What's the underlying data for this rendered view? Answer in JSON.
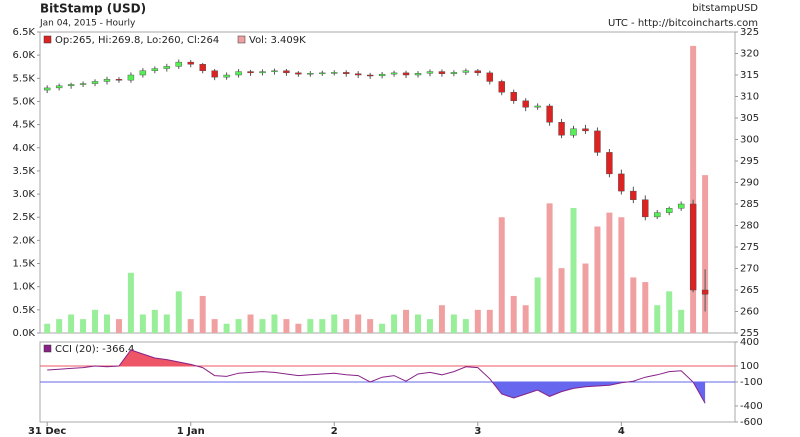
{
  "chart_data": [
    {
      "type": "candlestick",
      "title": "BitStamp (USD)",
      "subtitle": "Jan 04, 2015 - Hourly",
      "symbol": "bitstampUSD",
      "source": "UTC - http://bitcoincharts.com",
      "legend": "Op:265, Hi:269.8, Lo:260, Cl:264",
      "up_color": "#55ee55",
      "down_color": "#dd2222",
      "x": [
        0,
        2,
        4,
        6,
        8,
        10,
        12,
        14,
        16,
        18,
        20,
        22,
        24,
        26,
        28,
        30,
        32,
        34,
        36,
        38,
        40,
        42,
        44,
        46,
        48,
        50,
        52,
        54,
        56,
        58,
        60,
        62,
        64,
        66,
        68,
        70,
        72,
        74,
        76,
        78,
        80,
        82,
        84,
        86,
        88,
        90,
        92,
        94,
        96,
        98,
        100,
        102,
        104,
        106,
        108,
        110
      ],
      "open": [
        311.5,
        312,
        312.5,
        312.8,
        313,
        313.5,
        314,
        313.8,
        315,
        316,
        316.5,
        317,
        318,
        317.5,
        316,
        314.5,
        315,
        315.8,
        315.5,
        315.8,
        316,
        315.5,
        315.2,
        315.4,
        315.5,
        315.6,
        315.3,
        315,
        314.8,
        315.2,
        315.5,
        315,
        315.4,
        315.8,
        315.3,
        315.6,
        316,
        315.5,
        313.5,
        311,
        309,
        307.5,
        307.8,
        304,
        301,
        302.5,
        302,
        297,
        292,
        288,
        286,
        282,
        283,
        284,
        285,
        265
      ],
      "high": [
        312.6,
        313,
        313.2,
        313.5,
        314,
        314.6,
        314.5,
        315.6,
        316.6,
        317,
        317.6,
        318.6,
        318.5,
        317.8,
        316.4,
        315.6,
        316.4,
        316.2,
        316.3,
        316.5,
        316.4,
        315.9,
        315.9,
        316,
        316.1,
        316.1,
        315.9,
        315.5,
        315.7,
        316,
        316,
        315.9,
        316.3,
        316.3,
        316.1,
        316.5,
        316.4,
        316,
        313.9,
        311.6,
        309.6,
        308.4,
        308.3,
        304.8,
        303.2,
        303.4,
        302.8,
        297.8,
        293,
        289,
        287,
        283.6,
        284.4,
        285.6,
        286,
        269.8
      ],
      "low": [
        310.8,
        311.4,
        311.8,
        312.2,
        312.4,
        312.8,
        313.2,
        313.2,
        314.4,
        315.4,
        315.8,
        316.4,
        316.8,
        315.4,
        313.8,
        313.9,
        314.4,
        314.8,
        314.9,
        315.1,
        314.8,
        314.6,
        314.6,
        314.8,
        314.9,
        314.6,
        314.3,
        314.1,
        314.2,
        314.6,
        314.3,
        314.4,
        314.7,
        314.6,
        314.7,
        315,
        314.8,
        312.8,
        310.3,
        308.3,
        306.6,
        306.9,
        303.2,
        300.3,
        300.4,
        301.3,
        296.2,
        291.2,
        287.2,
        285.2,
        281.2,
        281.5,
        282.4,
        283.4,
        264.5,
        260
      ],
      "close": [
        312,
        312.5,
        312.8,
        313,
        313.5,
        314,
        313.8,
        315,
        316,
        316.5,
        317,
        318,
        317.5,
        316,
        314.5,
        315,
        315.8,
        315.5,
        315.8,
        316,
        315.5,
        315.2,
        315.4,
        315.5,
        315.6,
        315.3,
        315,
        314.8,
        315.2,
        315.5,
        315,
        315.4,
        315.8,
        315.3,
        315.6,
        316,
        315.5,
        313.5,
        311,
        309,
        307.5,
        307.8,
        304,
        301,
        302.5,
        302,
        297,
        292,
        288,
        286,
        282,
        283,
        284,
        285,
        265,
        264
      ],
      "volume": {
        "name": "Vol: 3.409K",
        "up_color": "#99ee99",
        "down_color": "#f0a0a0",
        "values": [
          0.2,
          0.3,
          0.4,
          0.3,
          0.5,
          0.4,
          0.3,
          1.3,
          0.4,
          0.5,
          0.4,
          0.9,
          0.3,
          0.8,
          0.3,
          0.2,
          0.3,
          0.4,
          0.3,
          0.4,
          0.3,
          0.2,
          0.3,
          0.3,
          0.4,
          0.3,
          0.4,
          0.3,
          0.2,
          0.4,
          0.5,
          0.4,
          0.3,
          0.6,
          0.4,
          0.3,
          0.5,
          0.5,
          2.5,
          0.8,
          0.6,
          1.2,
          2.8,
          1.4,
          2.7,
          1.5,
          2.3,
          2.6,
          2.5,
          1.2,
          1.1,
          0.6,
          0.9,
          0.5,
          6.2,
          3.409
        ]
      },
      "xlim": [
        -1.2,
        115
      ],
      "ylim": [
        0,
        6.5
      ],
      "yticks": [
        {
          "value": 0,
          "label": "0.0K"
        },
        {
          "value": 0.5,
          "label": "0.5K"
        },
        {
          "value": 1,
          "label": "1.0K"
        },
        {
          "value": 1.5,
          "label": "1.5K"
        },
        {
          "value": 2,
          "label": "2.0K"
        },
        {
          "value": 2.5,
          "label": "2.5K"
        },
        {
          "value": 3,
          "label": "3.0K"
        },
        {
          "value": 3.5,
          "label": "3.5K"
        },
        {
          "value": 4,
          "label": "4.0K"
        },
        {
          "value": 4.5,
          "label": "4.5K"
        },
        {
          "value": 5,
          "label": "5.0K"
        },
        {
          "value": 5.5,
          "label": "5.5K"
        },
        {
          "value": 6,
          "label": "6.0K"
        },
        {
          "value": 6.5,
          "label": "6.5K"
        }
      ],
      "y2lim": [
        255,
        325
      ],
      "y2ticks": [
        255,
        260,
        265,
        270,
        275,
        280,
        285,
        290,
        295,
        300,
        305,
        310,
        315,
        320,
        325
      ]
    },
    {
      "type": "cci",
      "name": "CCI (20): -366.4",
      "color": "#882288",
      "high_fill": "#ee5566",
      "low_fill": "#6666ee",
      "overbought": 100,
      "oversold": -100,
      "x": [
        0,
        2,
        4,
        6,
        8,
        10,
        12,
        14,
        16,
        18,
        20,
        22,
        24,
        26,
        28,
        30,
        32,
        34,
        36,
        38,
        40,
        42,
        44,
        46,
        48,
        50,
        52,
        54,
        56,
        58,
        60,
        62,
        64,
        66,
        68,
        70,
        72,
        74,
        76,
        78,
        80,
        82,
        84,
        86,
        88,
        90,
        92,
        94,
        96,
        98,
        100,
        102,
        104,
        106,
        108,
        110
      ],
      "values": [
        50,
        60,
        70,
        80,
        100,
        90,
        100,
        300,
        250,
        200,
        180,
        150,
        120,
        80,
        -20,
        -30,
        10,
        20,
        30,
        20,
        0,
        -20,
        -10,
        0,
        10,
        -10,
        -20,
        -100,
        -40,
        -20,
        -90,
        0,
        20,
        -10,
        30,
        90,
        80,
        -60,
        -250,
        -300,
        -250,
        -200,
        -280,
        -220,
        -180,
        -160,
        -150,
        -140,
        -110,
        -90,
        -40,
        -10,
        30,
        40,
        -100,
        -366.4
      ],
      "xlim": [
        -1.2,
        115
      ],
      "xticks": [
        {
          "value": 0,
          "label": "31 Dec"
        },
        {
          "value": 24,
          "label": "1 Jan"
        },
        {
          "value": 48,
          "label": "2"
        },
        {
          "value": 72,
          "label": "3"
        },
        {
          "value": 96,
          "label": "4"
        }
      ],
      "ylim": [
        -600,
        400
      ],
      "yticks": [
        400,
        100,
        -100,
        -400,
        -600
      ]
    }
  ]
}
